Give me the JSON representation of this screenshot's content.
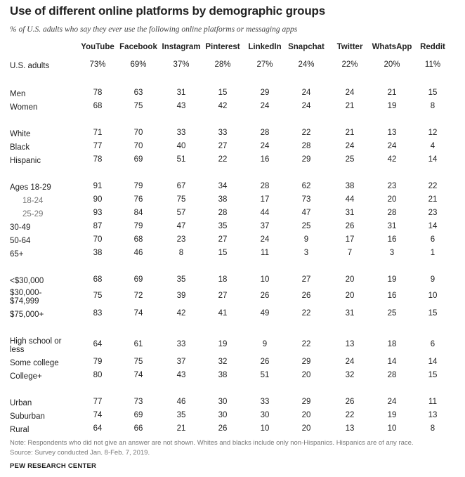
{
  "chart_data": {
    "type": "table",
    "title": "Use of different online platforms by demographic groups",
    "subtitle": "% of U.S. adults who say they ever use the following online platforms or messaging apps",
    "columns": [
      "YouTube",
      "Facebook",
      "Instagram",
      "Pinterest",
      "LinkedIn",
      "Snapchat",
      "Twitter",
      "WhatsApp",
      "Reddit"
    ],
    "rows": [
      {
        "label": "U.S. adults",
        "values": [
          "73%",
          "69%",
          "37%",
          "28%",
          "27%",
          "24%",
          "22%",
          "20%",
          "11%"
        ]
      },
      {
        "label": "Men",
        "values": [
          "78",
          "63",
          "31",
          "15",
          "29",
          "24",
          "24",
          "21",
          "15"
        ]
      },
      {
        "label": "Women",
        "values": [
          "68",
          "75",
          "43",
          "42",
          "24",
          "24",
          "21",
          "19",
          "8"
        ]
      },
      {
        "label": "White",
        "values": [
          "71",
          "70",
          "33",
          "33",
          "28",
          "22",
          "21",
          "13",
          "12"
        ]
      },
      {
        "label": "Black",
        "values": [
          "77",
          "70",
          "40",
          "27",
          "24",
          "28",
          "24",
          "24",
          "4"
        ]
      },
      {
        "label": "Hispanic",
        "values": [
          "78",
          "69",
          "51",
          "22",
          "16",
          "29",
          "25",
          "42",
          "14"
        ]
      },
      {
        "label": "Ages 18-29",
        "values": [
          "91",
          "79",
          "67",
          "34",
          "28",
          "62",
          "38",
          "23",
          "22"
        ]
      },
      {
        "label": "18-24",
        "values": [
          "90",
          "76",
          "75",
          "38",
          "17",
          "73",
          "44",
          "20",
          "21"
        ],
        "sub": true
      },
      {
        "label": "25-29",
        "values": [
          "93",
          "84",
          "57",
          "28",
          "44",
          "47",
          "31",
          "28",
          "23"
        ],
        "sub": true
      },
      {
        "label": "30-49",
        "values": [
          "87",
          "79",
          "47",
          "35",
          "37",
          "25",
          "26",
          "31",
          "14"
        ]
      },
      {
        "label": "50-64",
        "values": [
          "70",
          "68",
          "23",
          "27",
          "24",
          "9",
          "17",
          "16",
          "6"
        ]
      },
      {
        "label": "65+",
        "values": [
          "38",
          "46",
          "8",
          "15",
          "11",
          "3",
          "7",
          "3",
          "1"
        ]
      },
      {
        "label": "<$30,000",
        "values": [
          "68",
          "69",
          "35",
          "18",
          "10",
          "27",
          "20",
          "19",
          "9"
        ]
      },
      {
        "label": "$30,000- $74,999",
        "label_lines": [
          "$30,000-",
          "$74,999"
        ],
        "values": [
          "75",
          "72",
          "39",
          "27",
          "26",
          "26",
          "20",
          "16",
          "10"
        ]
      },
      {
        "label": "$75,000+",
        "values": [
          "83",
          "74",
          "42",
          "41",
          "49",
          "22",
          "31",
          "25",
          "15"
        ]
      },
      {
        "label": "High school or less",
        "label_lines": [
          "High school or",
          "less"
        ],
        "values": [
          "64",
          "61",
          "33",
          "19",
          "9",
          "22",
          "13",
          "18",
          "6"
        ]
      },
      {
        "label": "Some college",
        "values": [
          "79",
          "75",
          "37",
          "32",
          "26",
          "29",
          "24",
          "14",
          "14"
        ]
      },
      {
        "label": "College+",
        "values": [
          "80",
          "74",
          "43",
          "38",
          "51",
          "20",
          "32",
          "28",
          "15"
        ]
      },
      {
        "label": "Urban",
        "values": [
          "77",
          "73",
          "46",
          "30",
          "33",
          "29",
          "26",
          "24",
          "11"
        ]
      },
      {
        "label": "Suburban",
        "values": [
          "74",
          "69",
          "35",
          "30",
          "30",
          "20",
          "22",
          "19",
          "13"
        ]
      },
      {
        "label": "Rural",
        "values": [
          "64",
          "66",
          "21",
          "26",
          "10",
          "20",
          "13",
          "10",
          "8"
        ]
      }
    ]
  },
  "notes": {
    "note": "Note: Respondents who did not give an answer are not shown. Whites and blacks include only non-Hispanics. Hispanics are of any race.",
    "source": "Source: Survey conducted Jan. 8-Feb. 7, 2019."
  },
  "brand": "PEW RESEARCH CENTER"
}
